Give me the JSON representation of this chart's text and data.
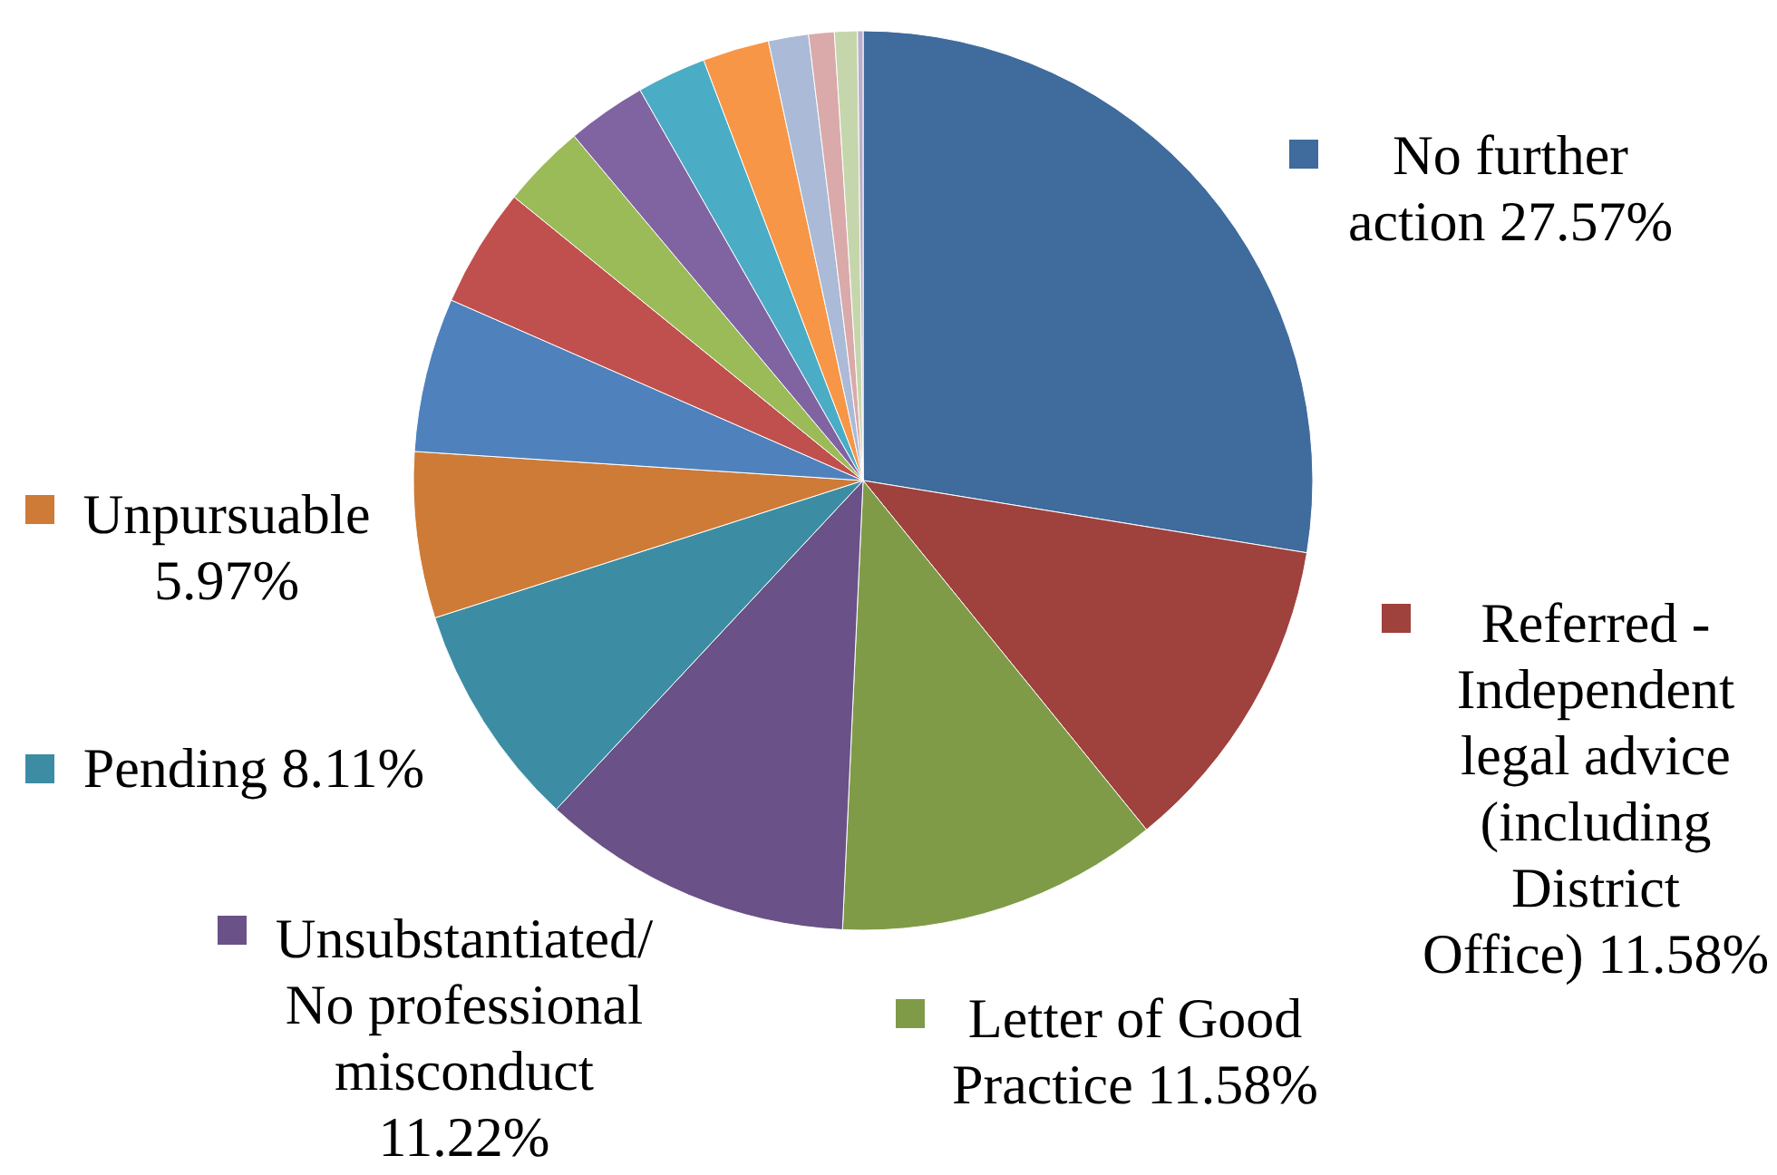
{
  "chart_data": {
    "type": "pie",
    "categories": [
      "No further action",
      "Referred - Independent legal advice (including District Office)",
      "Letter of Good Practice",
      "Unsubstantiated/ No professional misconduct",
      "Pending",
      "Unpursuable",
      null,
      null,
      null,
      null,
      null,
      null,
      null,
      null,
      null,
      null
    ],
    "values": [
      27.57,
      11.58,
      11.58,
      11.22,
      8.11,
      5.97,
      5.54,
      4.29,
      3.03,
      2.85,
      2.49,
      2.39,
      1.44,
      0.92,
      0.82,
      0.2
    ],
    "colors": [
      "#3f6b9d",
      "#9f413d",
      "#7f9b48",
      "#6a5187",
      "#3c8da4",
      "#cd7b37",
      "#4f81bd",
      "#c0504d",
      "#9bbb59",
      "#8064a2",
      "#4bacc6",
      "#f79646",
      "#aabad7",
      "#d9aaa9",
      "#c6d6ac",
      "#b9aecb"
    ],
    "value_labels": [
      "27.57%",
      "11.58%",
      "11.58%",
      "11.22%",
      "8.11%",
      "5.97%",
      null,
      null,
      null,
      null,
      null,
      null,
      null,
      null,
      null,
      null
    ],
    "legend": "right"
  }
}
